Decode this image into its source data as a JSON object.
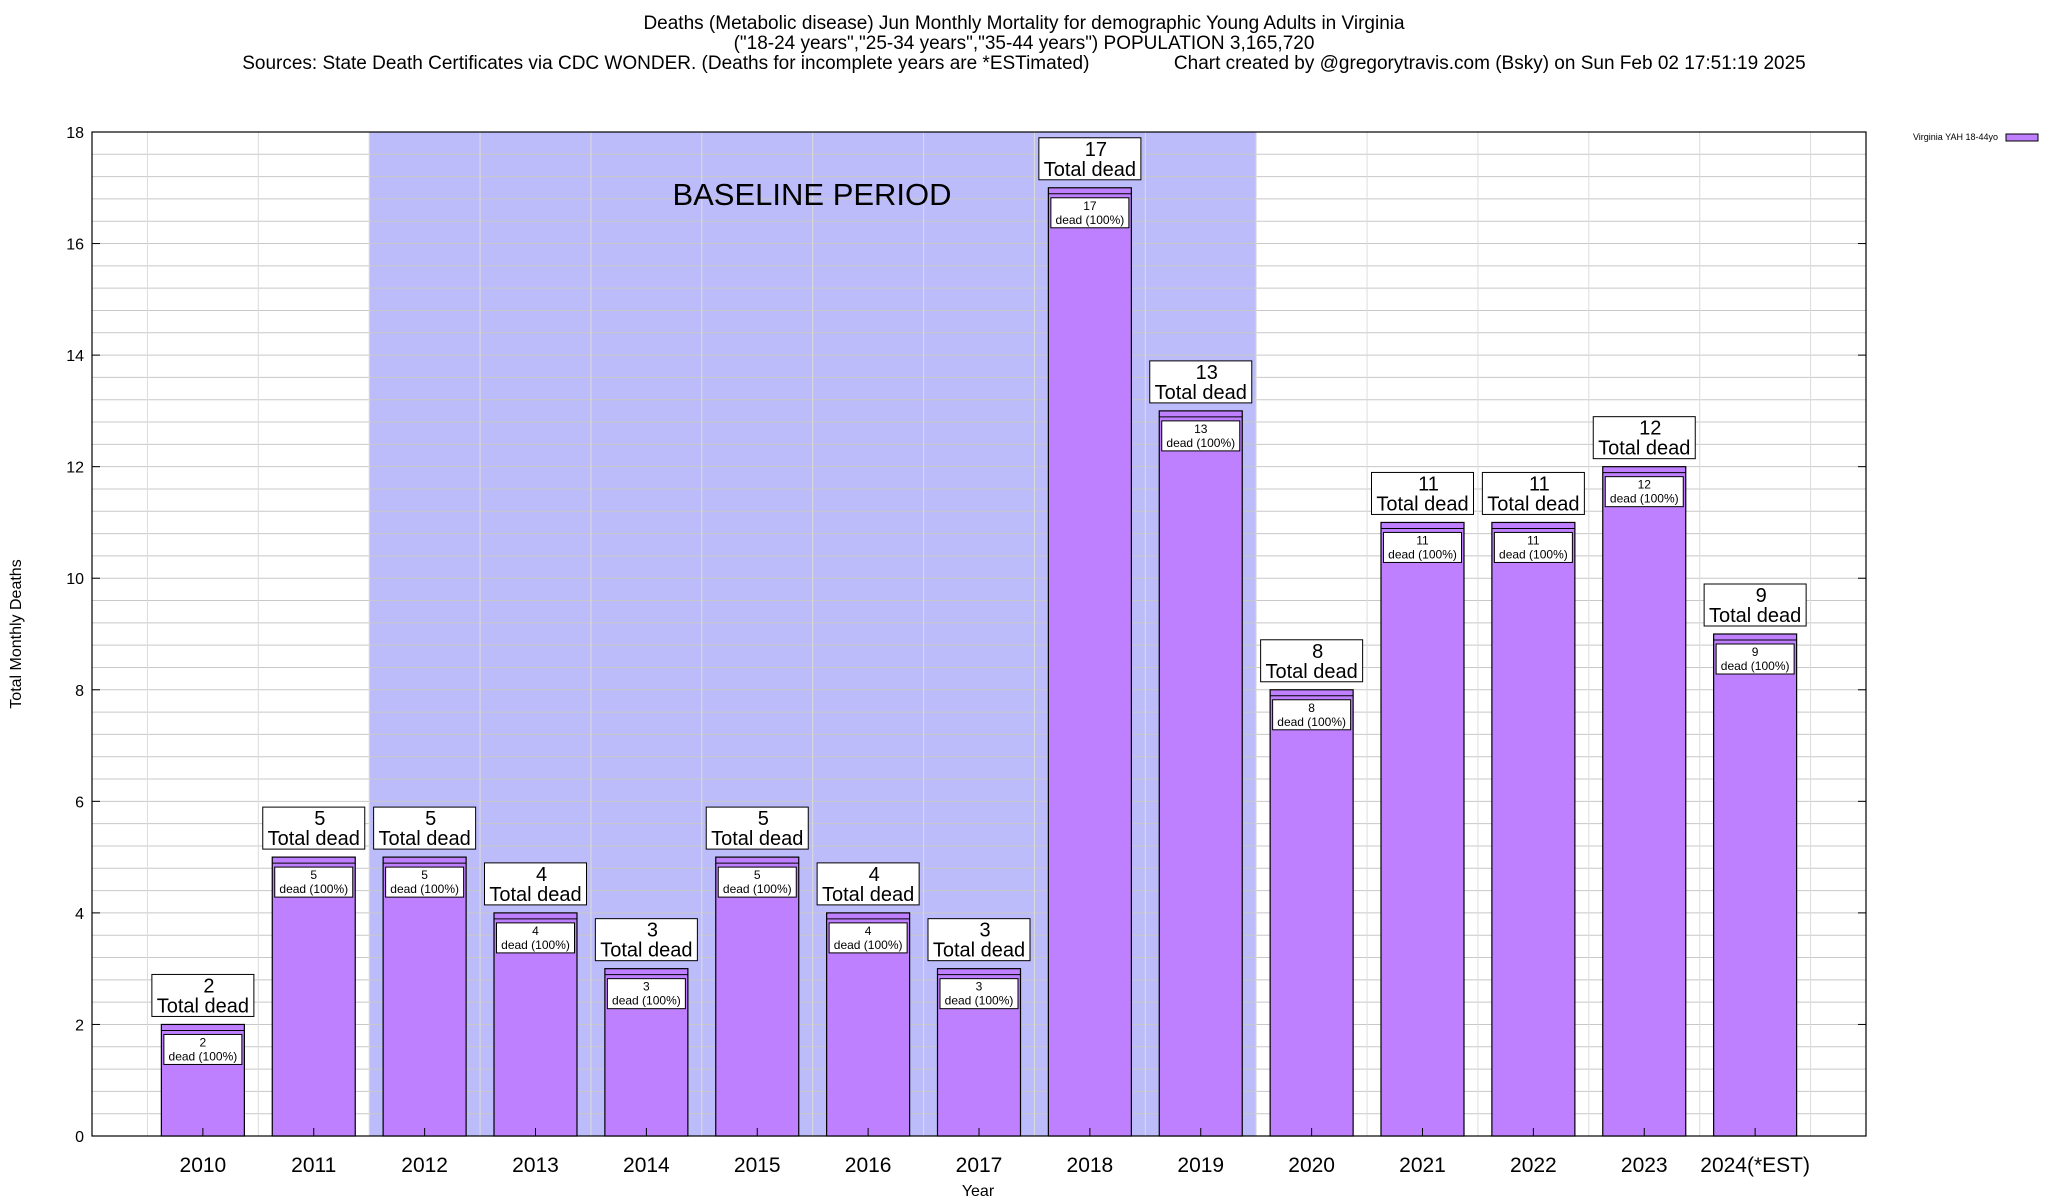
{
  "titles": {
    "line1": "Deaths (Metabolic disease) Jun Monthly Mortality for demographic Young Adults in Virginia",
    "line2": "(\"18-24 years\",\"25-34 years\",\"35-44 years\") POPULATION 3,165,720",
    "line3_left": "Sources: State Death Certificates via CDC WONDER. (Deaths for incomplete years are *ESTimated)",
    "line3_right": "Chart created by @gregorytravis.com (Bsky) on Sun Feb 02 17:51:19 2025"
  },
  "colors": {
    "bar_fill": "#bf80ff",
    "baseline_band": "#bcbcfa",
    "grid": "#c8c8c8"
  },
  "chart_data": {
    "type": "bar",
    "categories": [
      "2010",
      "2011",
      "2012",
      "2013",
      "2014",
      "2015",
      "2016",
      "2017",
      "2018",
      "2019",
      "2020",
      "2021",
      "2022",
      "2023",
      "2024(*EST)"
    ],
    "series": [
      {
        "name": "Virginia YAH 18-44yo",
        "values": [
          2,
          5,
          5,
          4,
          3,
          5,
          4,
          3,
          17,
          13,
          8,
          11,
          11,
          12,
          9
        ]
      }
    ],
    "xlabel": "Year",
    "ylabel": "Total Monthly Deaths",
    "ylim": [
      0,
      18
    ],
    "yticks": [
      0,
      2,
      4,
      6,
      8,
      10,
      12,
      14,
      16,
      18
    ],
    "grid": true,
    "legend": "top-right",
    "baseline_period": {
      "label": "BASELINE PERIOD",
      "from": "2012",
      "to": "2019"
    },
    "annotation_top_suffix": "Total dead",
    "annotation_inner_suffix": "dead (100%)"
  }
}
